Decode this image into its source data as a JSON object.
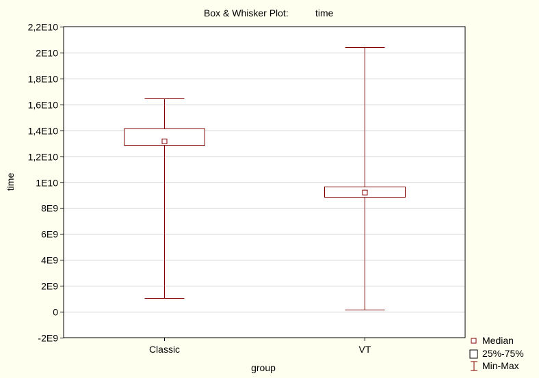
{
  "chart_data": {
    "type": "boxplot",
    "title": "Box & Whisker Plot:",
    "title_variable": "time",
    "xlabel": "group",
    "ylabel": "time",
    "ylim": [
      -2000000000,
      22000000000
    ],
    "yticks": [
      {
        "value": -2000000000,
        "label": "-2E9"
      },
      {
        "value": 0,
        "label": "0"
      },
      {
        "value": 2000000000,
        "label": "2E9"
      },
      {
        "value": 4000000000,
        "label": "4E9"
      },
      {
        "value": 6000000000,
        "label": "6E9"
      },
      {
        "value": 8000000000,
        "label": "8E9"
      },
      {
        "value": 10000000000,
        "label": "1E10"
      },
      {
        "value": 12000000000,
        "label": "1,2E10"
      },
      {
        "value": 14000000000,
        "label": "1,4E10"
      },
      {
        "value": 16000000000,
        "label": "1,6E10"
      },
      {
        "value": 18000000000,
        "label": "1,8E10"
      },
      {
        "value": 20000000000,
        "label": "2E10"
      },
      {
        "value": 22000000000,
        "label": "2,2E10"
      }
    ],
    "grid": true,
    "categories": [
      "Classic",
      "VT"
    ],
    "boxes": [
      {
        "category": "Classic",
        "min": 1050000000,
        "q1": 12900000000,
        "median": 13150000000,
        "q3": 14150000000,
        "max": 16450000000
      },
      {
        "category": "VT",
        "min": 150000000,
        "q1": 8850000000,
        "median": 9200000000,
        "q3": 9650000000,
        "max": 20400000000
      }
    ],
    "legend": {
      "placement": "bottom-right",
      "entries": [
        "Median",
        "25%-75%",
        "Min-Max"
      ]
    },
    "colors": {
      "series": "#800000",
      "grid": "#d0d0d0",
      "background": "#fffff0",
      "plot_area": "#ffffff"
    }
  }
}
